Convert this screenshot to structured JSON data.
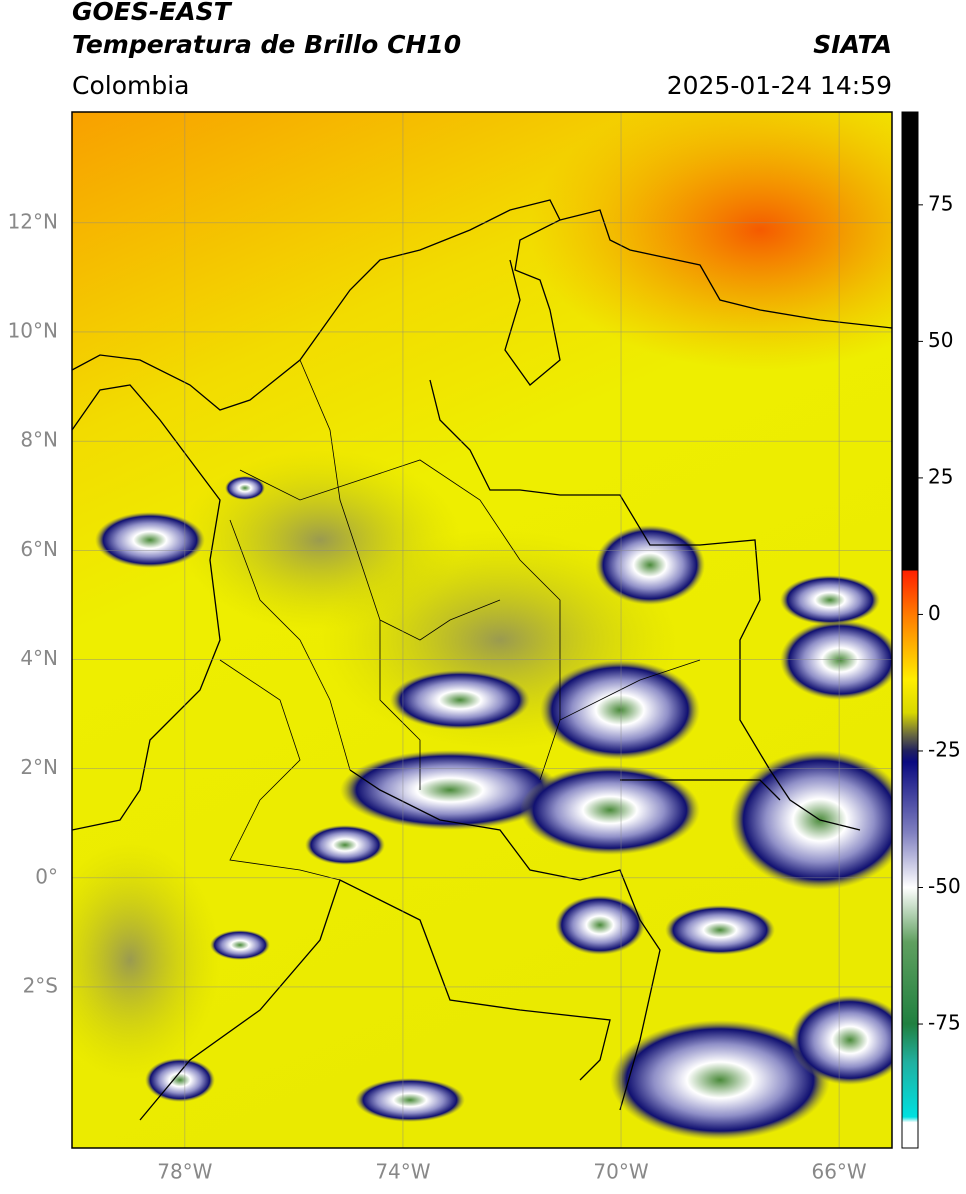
{
  "map": {
    "title_line1": "GOES-EAST",
    "title_line2": "Temperatura de Brillo CH10",
    "agency": "SIATA",
    "region": "Colombia",
    "timestamp": "2025-01-24 14:59",
    "xlim": [
      -80.07,
      -65.03
    ],
    "ylim": [
      -4.95,
      14.03
    ],
    "xticks": [
      {
        "value": -78,
        "label": "78°W"
      },
      {
        "value": -74,
        "label": "74°W"
      },
      {
        "value": -70,
        "label": "70°W"
      },
      {
        "value": -66,
        "label": "66°W"
      }
    ],
    "yticks": [
      {
        "value": 12,
        "label": "12°N"
      },
      {
        "value": 10,
        "label": "10°N"
      },
      {
        "value": 8,
        "label": "8°N"
      },
      {
        "value": 6,
        "label": "6°N"
      },
      {
        "value": 4,
        "label": "4°N"
      },
      {
        "value": 2,
        "label": "2°N"
      },
      {
        "value": 0,
        "label": "0°"
      },
      {
        "value": -2,
        "label": "2°S"
      }
    ],
    "grid": true,
    "colorbar": {
      "lim": [
        -97.7,
        92
      ],
      "ticks": [
        75,
        50,
        25,
        0,
        -25,
        -50,
        -75
      ],
      "stops": [
        {
          "value": 92,
          "color": "#000000"
        },
        {
          "value": 8,
          "color": "#000000"
        },
        {
          "value": 8,
          "color": "#ff2000"
        },
        {
          "value": 0,
          "color": "#ff7a00"
        },
        {
          "value": -12,
          "color": "#ffee00"
        },
        {
          "value": -18,
          "color": "#d8d800"
        },
        {
          "value": -22,
          "color": "#6a6a40"
        },
        {
          "value": -25,
          "color": "#202060"
        },
        {
          "value": -27,
          "color": "#0a0a80"
        },
        {
          "value": -40,
          "color": "#8080c0"
        },
        {
          "value": -50,
          "color": "#ffffff"
        },
        {
          "value": -60,
          "color": "#60a060"
        },
        {
          "value": -75,
          "color": "#208040"
        },
        {
          "value": -82,
          "color": "#20b0a0"
        },
        {
          "value": -92,
          "color": "#00e0e0"
        },
        {
          "value": -93,
          "color": "#ffffff"
        },
        {
          "value": -97.7,
          "color": "#ffffff"
        }
      ]
    }
  }
}
